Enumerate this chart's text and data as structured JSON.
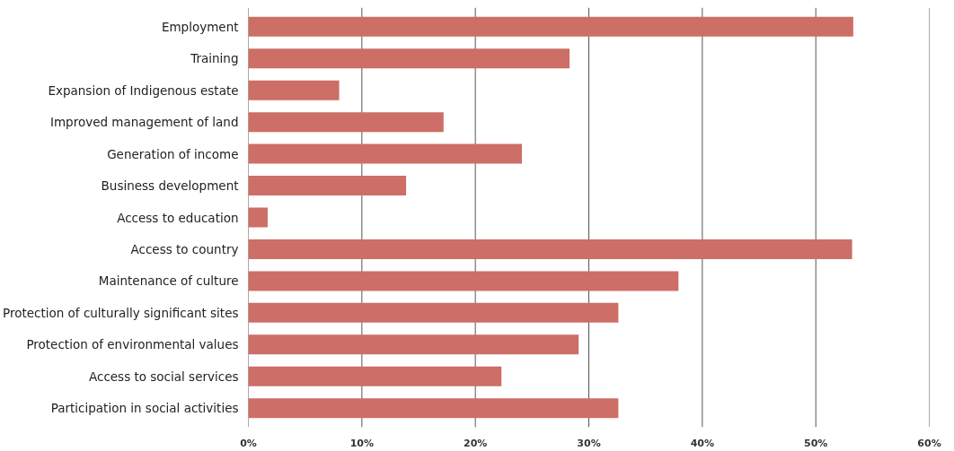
{
  "chart_data": {
    "type": "bar",
    "orientation": "horizontal",
    "categories": [
      "Employment",
      "Training",
      "Expansion of Indigenous estate",
      "Improved management of land",
      "Generation of income",
      "Business development",
      "Access to education",
      "Access to country",
      "Maintenance of culture",
      "Protection of culturally significant sites",
      "Protection of environmental values",
      "Access to social services",
      "Participation in social activities"
    ],
    "values": [
      53.3,
      28.3,
      8.0,
      17.2,
      24.1,
      13.9,
      1.7,
      53.2,
      37.9,
      32.6,
      29.1,
      22.3,
      32.6
    ],
    "color": "#cd6e67",
    "xlim": [
      0,
      60
    ],
    "xticks": [
      {
        "value": 0,
        "label": "0%"
      },
      {
        "value": 10,
        "label": "10%"
      },
      {
        "value": 20,
        "label": "20%"
      },
      {
        "value": 30,
        "label": "30%"
      },
      {
        "value": 40,
        "label": "40%"
      },
      {
        "value": 50,
        "label": "50%"
      },
      {
        "value": 60,
        "label": "60%"
      }
    ],
    "grid": "x"
  }
}
